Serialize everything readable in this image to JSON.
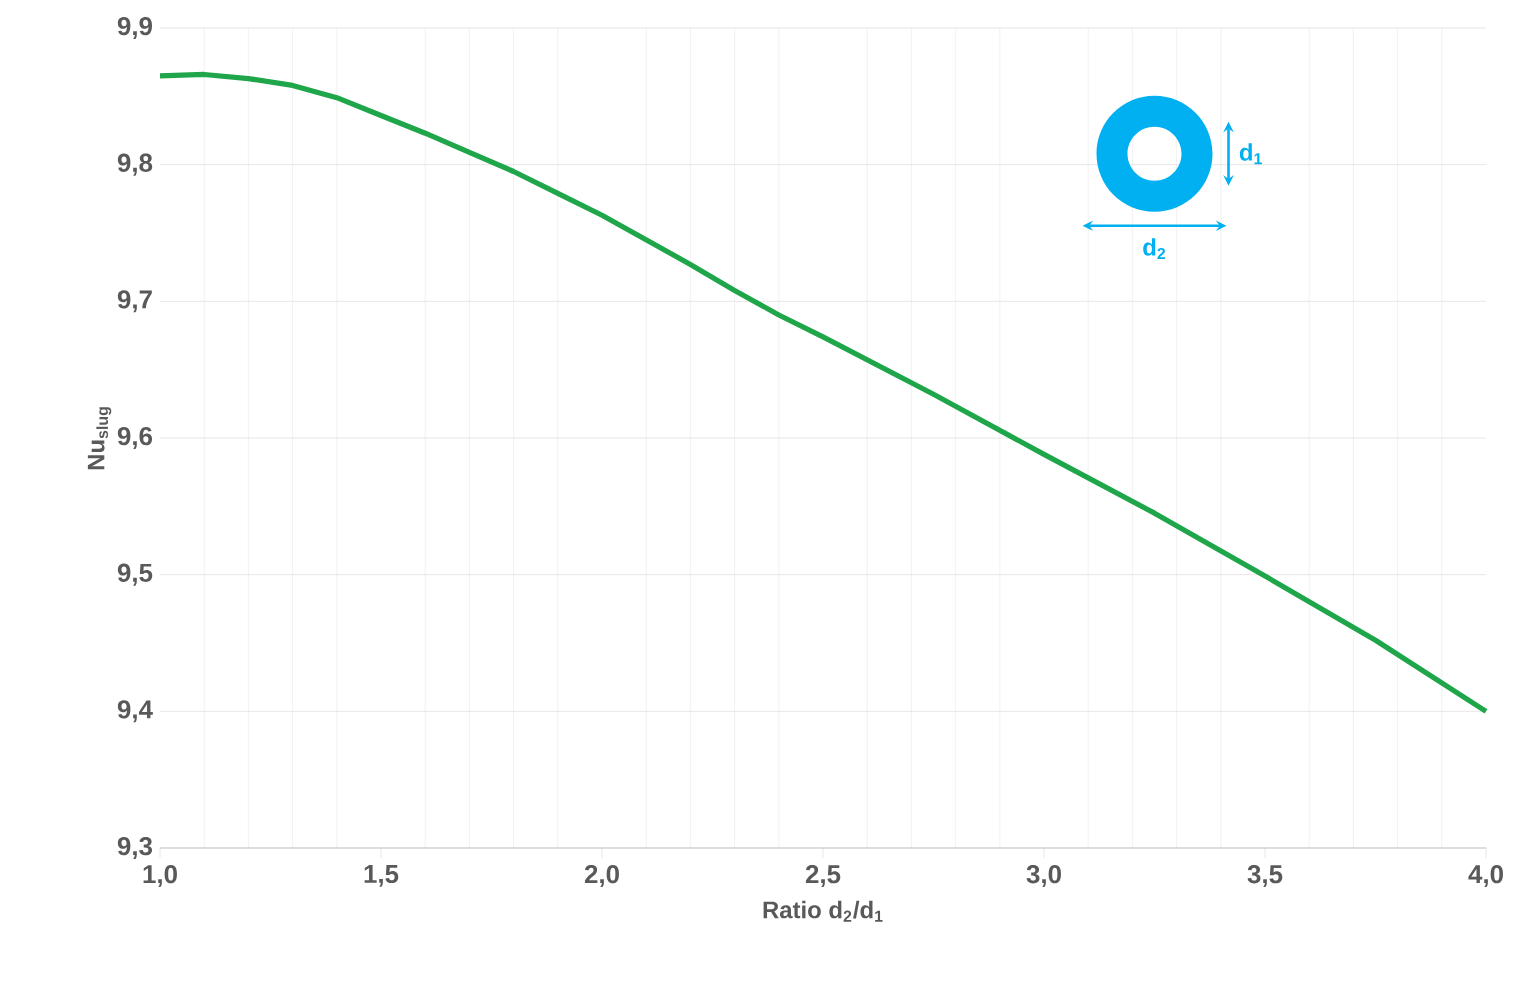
{
  "chart_data": {
    "type": "line",
    "xlabel": "Ratio d$_{2}$/d$_{1}$",
    "ylabel": "Nu$_{slug}$",
    "x": [
      1.0,
      1.1,
      1.2,
      1.3,
      1.4,
      1.5,
      1.6,
      1.7,
      1.8,
      1.9,
      2.0,
      2.1,
      2.2,
      2.3,
      2.4,
      2.5,
      2.75,
      3.0,
      3.25,
      3.5,
      3.75,
      4.0
    ],
    "series": [
      {
        "color": "#1fa64a",
        "values": [
          9.865,
          9.866,
          9.863,
          9.858,
          9.849,
          9.836,
          9.823,
          9.809,
          9.795,
          9.779,
          9.763,
          9.745,
          9.727,
          9.708,
          9.69,
          9.674,
          9.632,
          9.588,
          9.545,
          9.499,
          9.452,
          9.4
        ]
      }
    ],
    "xlim": [
      1.0,
      4.0
    ],
    "ylim": [
      9.3,
      9.9
    ],
    "xticks": [
      {
        "value": 1.0,
        "label": "1,0"
      },
      {
        "value": 1.5,
        "label": "1,5"
      },
      {
        "value": 2.0,
        "label": "2,0"
      },
      {
        "value": 2.5,
        "label": "2,5"
      },
      {
        "value": 3.0,
        "label": "3,0"
      },
      {
        "value": 3.5,
        "label": "3,5"
      },
      {
        "value": 4.0,
        "label": "4,0"
      }
    ],
    "yticks": [
      {
        "value": 9.3,
        "label": "9,3"
      },
      {
        "value": 9.4,
        "label": "9,4"
      },
      {
        "value": 9.5,
        "label": "9,5"
      },
      {
        "value": 9.6,
        "label": "9,6"
      },
      {
        "value": 9.7,
        "label": "9,7"
      },
      {
        "value": 9.8,
        "label": "9,8"
      },
      {
        "value": 9.9,
        "label": "9,9"
      }
    ],
    "grid": true,
    "marker": "none",
    "line_style": "solid",
    "annotations": [
      "d$_{1}$",
      "d$_{2}$"
    ]
  }
}
